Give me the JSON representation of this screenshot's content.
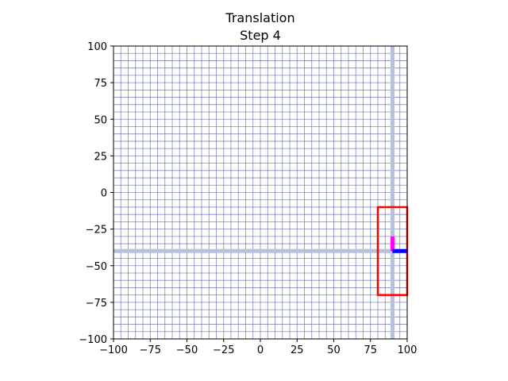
{
  "chart_data": {
    "type": "line",
    "title": "Translation",
    "subtitle": "Step 4",
    "xlabel": "",
    "ylabel": "",
    "xlim": [
      -100,
      100
    ],
    "ylim": [
      -100,
      100
    ],
    "xticks": [
      -100,
      -75,
      -50,
      -25,
      0,
      25,
      50,
      75,
      100
    ],
    "yticks": [
      -100,
      -75,
      -50,
      -25,
      0,
      25,
      50,
      75,
      100
    ],
    "xtick_labels": [
      "−100",
      "−75",
      "−50",
      "−25",
      "0",
      "25",
      "50",
      "75",
      "100"
    ],
    "ytick_labels": [
      "−100",
      "−75",
      "−50",
      "−25",
      "0",
      "25",
      "50",
      "75",
      "100"
    ],
    "grid": {
      "on": true,
      "minor_step": 5,
      "color": "#5566aa"
    },
    "axis_lines": {
      "x": 90,
      "y": -40,
      "color": "#b7c1dc"
    },
    "series": [
      {
        "kind": "rect",
        "x": [
          80,
          100
        ],
        "y": [
          -70,
          -10
        ],
        "color": "#ff0000"
      },
      {
        "kind": "vector",
        "x": [
          90,
          90
        ],
        "y": [
          -40,
          -30
        ],
        "color": "#ff00ff"
      },
      {
        "kind": "vector",
        "x": [
          90,
          100
        ],
        "y": [
          -40,
          -40
        ],
        "color": "#0000ff"
      }
    ]
  }
}
